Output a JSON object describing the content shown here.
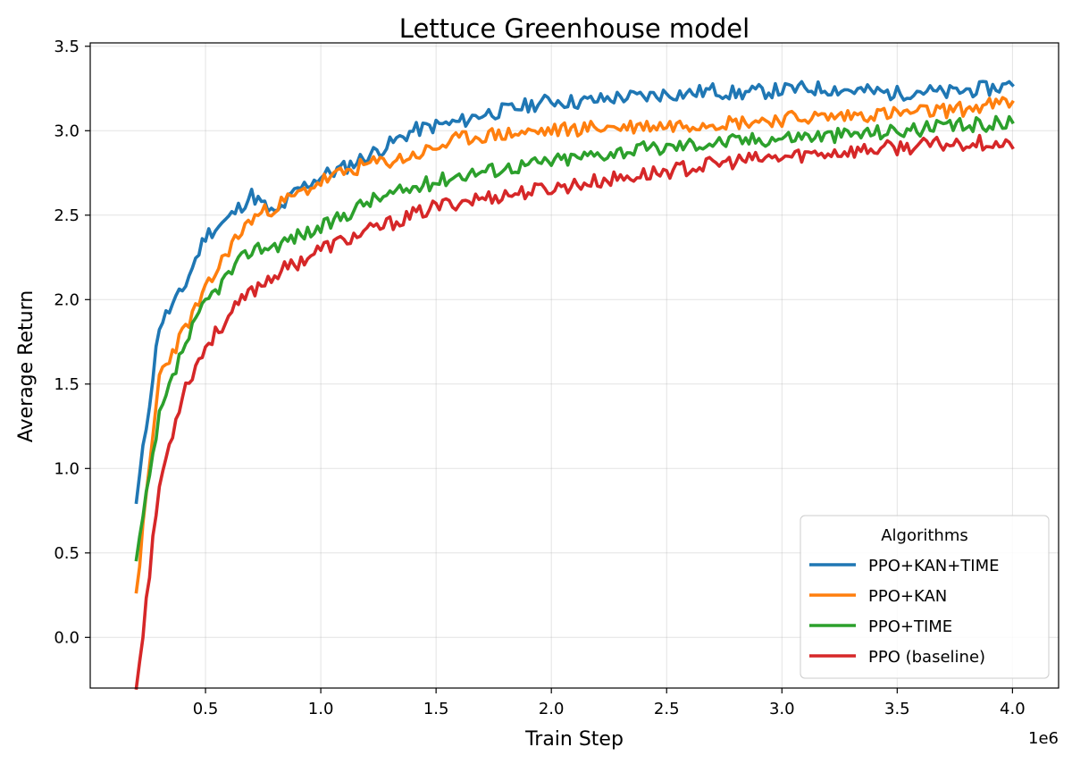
{
  "chart_data": {
    "type": "line",
    "title": "Lettuce Greenhouse model",
    "xlabel": "Train Step",
    "ylabel": "Average Return",
    "x_offset_label": "1e6",
    "xlim": [
      0.0,
      4.2
    ],
    "ylim": [
      -0.3,
      3.52
    ],
    "xticks": [
      "0.5",
      "1.0",
      "1.5",
      "2.0",
      "2.5",
      "3.0",
      "3.5",
      "4.0"
    ],
    "yticks": [
      "0.0",
      "0.5",
      "1.0",
      "1.5",
      "2.0",
      "2.5",
      "3.0",
      "3.5"
    ],
    "grid": true,
    "legend": {
      "title": "Algorithms",
      "placement": "lower-right"
    },
    "x": [
      0.2,
      0.3,
      0.4,
      0.5,
      0.6,
      0.7,
      0.8,
      0.9,
      1.0,
      1.1,
      1.2,
      1.3,
      1.4,
      1.5,
      1.6,
      1.7,
      1.8,
      1.9,
      2.0,
      2.1,
      2.2,
      2.3,
      2.4,
      2.5,
      2.6,
      2.7,
      2.8,
      2.9,
      3.0,
      3.1,
      3.2,
      3.3,
      3.4,
      3.5,
      3.6,
      3.7,
      3.8,
      3.9,
      4.0
    ],
    "series": [
      {
        "name": "PPO+KAN+TIME",
        "color": "#1f77b4",
        "values": [
          0.8,
          1.85,
          2.05,
          2.38,
          2.48,
          2.62,
          2.5,
          2.65,
          2.73,
          2.78,
          2.85,
          2.92,
          3.0,
          3.03,
          3.05,
          3.1,
          3.12,
          3.15,
          3.18,
          3.17,
          3.18,
          3.2,
          3.2,
          3.22,
          3.22,
          3.24,
          3.22,
          3.23,
          3.24,
          3.25,
          3.25,
          3.24,
          3.23,
          3.22,
          3.24,
          3.22,
          3.24,
          3.25,
          3.27
        ]
      },
      {
        "name": "PPO+KAN",
        "color": "#ff7f0e",
        "values": [
          0.27,
          1.55,
          1.8,
          2.05,
          2.3,
          2.48,
          2.55,
          2.62,
          2.7,
          2.75,
          2.8,
          2.82,
          2.85,
          2.9,
          2.95,
          2.97,
          2.98,
          2.99,
          3.0,
          3.01,
          3.02,
          3.02,
          3.03,
          3.03,
          3.04,
          3.05,
          3.05,
          3.06,
          3.07,
          3.08,
          3.08,
          3.09,
          3.1,
          3.1,
          3.11,
          3.12,
          3.13,
          3.15,
          3.17
        ]
      },
      {
        "name": "PPO+TIME",
        "color": "#2ca02c",
        "values": [
          0.46,
          1.3,
          1.7,
          1.98,
          2.15,
          2.3,
          2.32,
          2.38,
          2.42,
          2.5,
          2.58,
          2.62,
          2.66,
          2.7,
          2.74,
          2.76,
          2.78,
          2.8,
          2.82,
          2.84,
          2.86,
          2.88,
          2.89,
          2.9,
          2.92,
          2.93,
          2.94,
          2.95,
          2.96,
          2.97,
          2.97,
          2.98,
          2.99,
          3.0,
          3.01,
          3.02,
          3.03,
          3.04,
          3.05
        ]
      },
      {
        "name": "PPO (baseline)",
        "color": "#d62728",
        "values": [
          -0.3,
          0.9,
          1.45,
          1.72,
          1.9,
          2.05,
          2.15,
          2.22,
          2.3,
          2.35,
          2.4,
          2.45,
          2.5,
          2.55,
          2.58,
          2.6,
          2.62,
          2.64,
          2.66,
          2.68,
          2.7,
          2.72,
          2.74,
          2.76,
          2.78,
          2.8,
          2.82,
          2.83,
          2.84,
          2.86,
          2.87,
          2.88,
          2.89,
          2.9,
          2.91,
          2.92,
          2.93,
          2.93,
          2.9
        ]
      }
    ]
  }
}
